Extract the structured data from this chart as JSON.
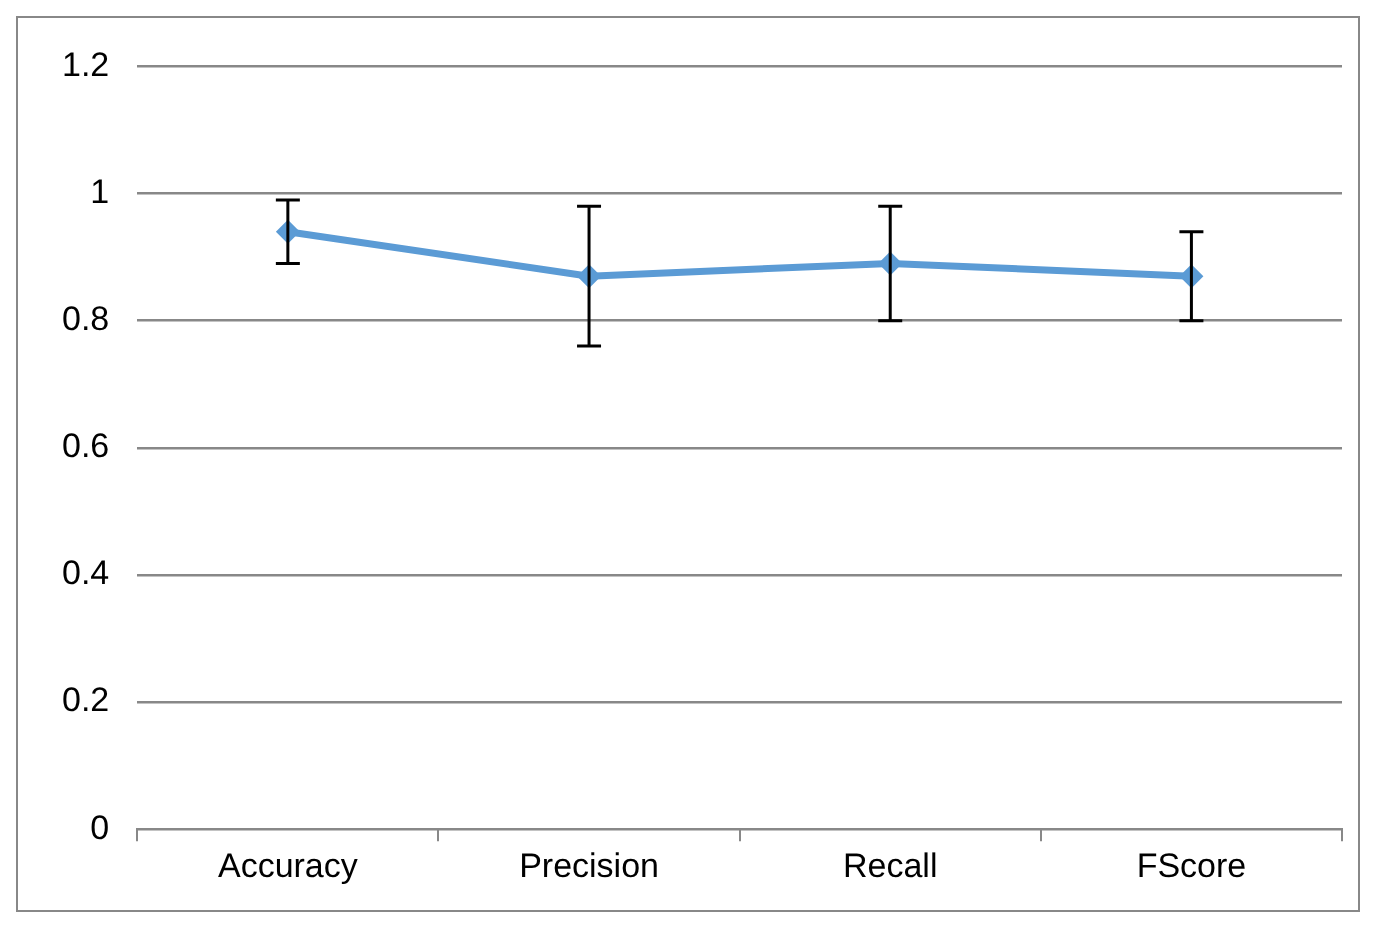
{
  "chart_data": {
    "type": "line",
    "categories": [
      "Accuracy",
      "Precision",
      "Recall",
      "FScore"
    ],
    "series": [
      {
        "color": "#5b9bd5",
        "values": [
          0.94,
          0.87,
          0.89,
          0.87
        ],
        "errors": [
          [
            0.89,
            0.99
          ],
          [
            0.76,
            0.98
          ],
          [
            0.8,
            0.98
          ],
          [
            0.8,
            0.94
          ]
        ]
      }
    ],
    "ylim": [
      0,
      1.2
    ],
    "yticks": [
      0,
      0.2,
      0.4,
      0.6,
      0.8,
      1,
      1.2
    ],
    "grid": "y",
    "legend": false,
    "marker": "diamond",
    "line_style": "solid"
  }
}
